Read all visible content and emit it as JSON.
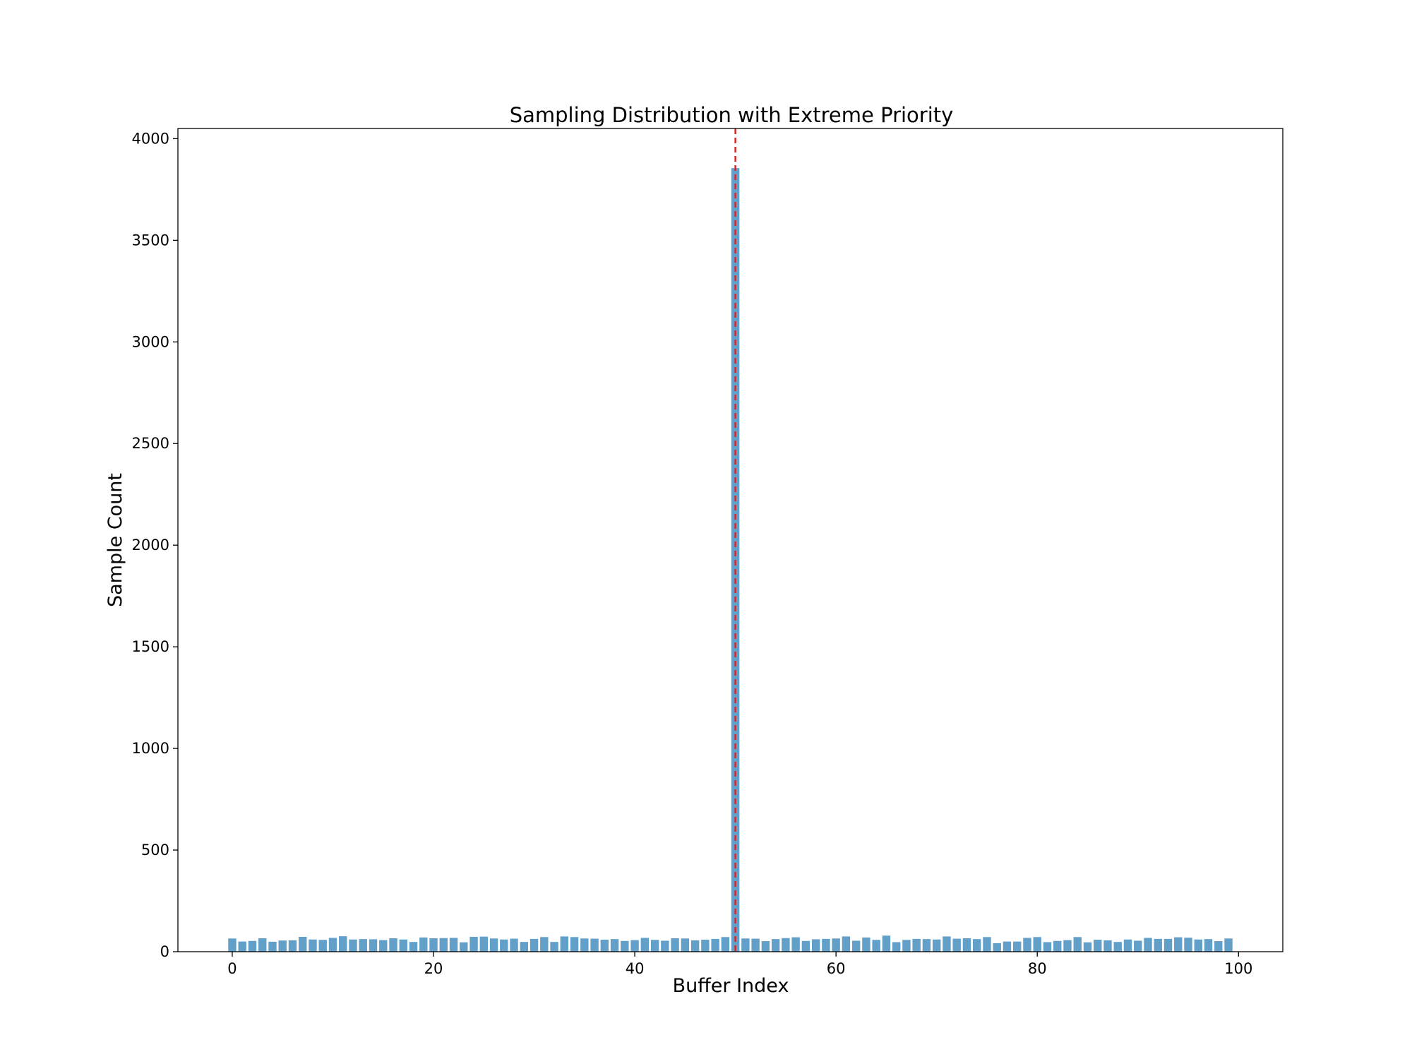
{
  "chart_data": {
    "type": "bar",
    "title": "Sampling Distribution with Extreme Priority",
    "xlabel": "Buffer Index",
    "ylabel": "Sample Count",
    "xlim": [
      -5.4,
      104.4
    ],
    "ylim": [
      0,
      4050
    ],
    "xticks": [
      0,
      20,
      40,
      60,
      80,
      100
    ],
    "yticks": [
      0,
      500,
      1000,
      1500,
      2000,
      2500,
      3000,
      3500,
      4000
    ],
    "grid": false,
    "bar_color": "#1f77b4",
    "bar_alpha": 0.7,
    "marker_color": "#d62728",
    "marker_x": 50,
    "x": [
      0,
      1,
      2,
      3,
      4,
      5,
      6,
      7,
      8,
      9,
      10,
      11,
      12,
      13,
      14,
      15,
      16,
      17,
      18,
      19,
      20,
      21,
      22,
      23,
      24,
      25,
      26,
      27,
      28,
      29,
      30,
      31,
      32,
      33,
      34,
      35,
      36,
      37,
      38,
      39,
      40,
      41,
      42,
      43,
      44,
      45,
      46,
      47,
      48,
      49,
      50,
      51,
      52,
      53,
      54,
      55,
      56,
      57,
      58,
      59,
      60,
      61,
      62,
      63,
      64,
      65,
      66,
      67,
      68,
      69,
      70,
      71,
      72,
      73,
      74,
      75,
      76,
      77,
      78,
      79,
      80,
      81,
      82,
      83,
      84,
      85,
      86,
      87,
      88,
      89,
      90,
      91,
      92,
      93,
      94,
      95,
      96,
      97,
      98,
      99
    ],
    "values": [
      65,
      50,
      53,
      66,
      49,
      55,
      56,
      73,
      60,
      58,
      68,
      76,
      60,
      62,
      61,
      57,
      66,
      60,
      48,
      70,
      66,
      67,
      68,
      46,
      73,
      74,
      65,
      60,
      64,
      48,
      63,
      72,
      48,
      75,
      72,
      65,
      64,
      59,
      62,
      53,
      57,
      68,
      58,
      54,
      66,
      65,
      56,
      59,
      63,
      72,
      3855,
      65,
      64,
      52,
      62,
      67,
      71,
      53,
      61,
      63,
      65,
      75,
      54,
      70,
      58,
      79,
      47,
      58,
      63,
      62,
      60,
      75,
      64,
      66,
      62,
      72,
      42,
      50,
      50,
      68,
      72,
      47,
      53,
      57,
      72,
      46,
      59,
      56,
      48,
      60,
      54,
      68,
      63,
      63,
      71,
      69,
      60,
      62,
      52,
      65
    ]
  }
}
